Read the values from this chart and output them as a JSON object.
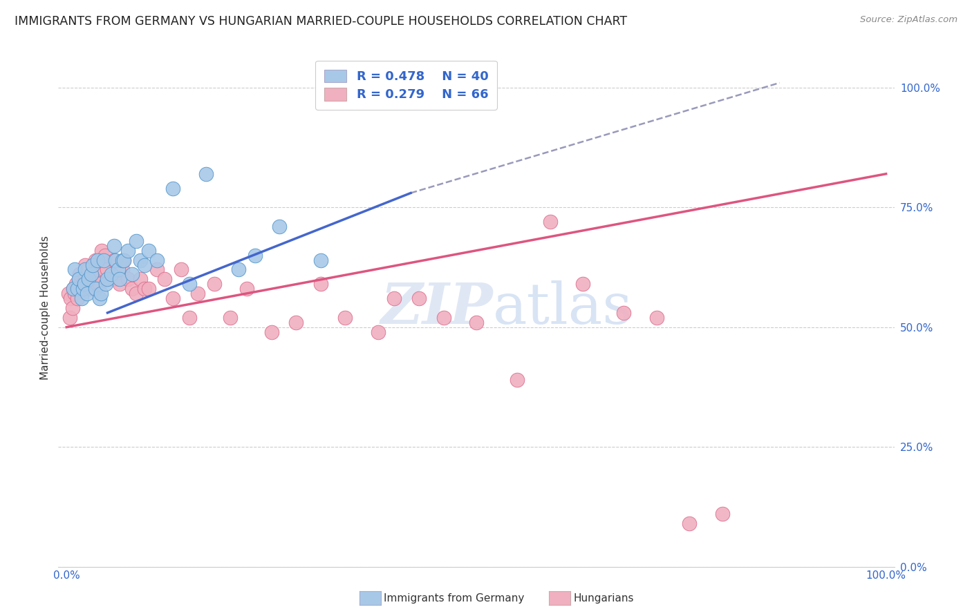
{
  "title": "IMMIGRANTS FROM GERMANY VS HUNGARIAN MARRIED-COUPLE HOUSEHOLDS CORRELATION CHART",
  "source": "Source: ZipAtlas.com",
  "ylabel": "Married-couple Households",
  "legend_label1": "Immigrants from Germany",
  "legend_label2": "Hungarians",
  "legend_R1": "R = 0.478",
  "legend_N1": "N = 40",
  "legend_R2": "R = 0.279",
  "legend_N2": "N = 66",
  "color_blue_fill": "#a8c8e8",
  "color_blue_edge": "#5599cc",
  "color_pink_fill": "#f0b0c0",
  "color_pink_edge": "#dd7090",
  "color_blue_line": "#4466cc",
  "color_pink_line": "#dd5580",
  "color_dashed": "#9999bb",
  "watermark_ZIP": "ZIP",
  "watermark_atlas": "atlas",
  "blue_scatter_x": [
    0.008,
    0.01,
    0.013,
    0.015,
    0.018,
    0.02,
    0.022,
    0.023,
    0.025,
    0.027,
    0.03,
    0.032,
    0.035,
    0.038,
    0.04,
    0.042,
    0.045,
    0.048,
    0.05,
    0.055,
    0.058,
    0.06,
    0.063,
    0.065,
    0.068,
    0.07,
    0.075,
    0.08,
    0.085,
    0.09,
    0.095,
    0.1,
    0.11,
    0.13,
    0.15,
    0.17,
    0.21,
    0.23,
    0.26,
    0.31
  ],
  "blue_scatter_y": [
    0.58,
    0.62,
    0.58,
    0.6,
    0.56,
    0.58,
    0.59,
    0.62,
    0.57,
    0.6,
    0.61,
    0.63,
    0.58,
    0.64,
    0.56,
    0.57,
    0.64,
    0.59,
    0.6,
    0.61,
    0.67,
    0.64,
    0.62,
    0.6,
    0.64,
    0.64,
    0.66,
    0.61,
    0.68,
    0.64,
    0.63,
    0.66,
    0.64,
    0.79,
    0.59,
    0.82,
    0.62,
    0.65,
    0.71,
    0.64
  ],
  "pink_scatter_x": [
    0.002,
    0.004,
    0.005,
    0.007,
    0.008,
    0.01,
    0.012,
    0.013,
    0.015,
    0.016,
    0.018,
    0.02,
    0.022,
    0.023,
    0.025,
    0.026,
    0.028,
    0.03,
    0.032,
    0.034,
    0.035,
    0.037,
    0.038,
    0.04,
    0.042,
    0.043,
    0.045,
    0.047,
    0.05,
    0.055,
    0.058,
    0.06,
    0.065,
    0.068,
    0.07,
    0.075,
    0.08,
    0.085,
    0.09,
    0.095,
    0.1,
    0.11,
    0.12,
    0.13,
    0.14,
    0.15,
    0.16,
    0.18,
    0.2,
    0.22,
    0.25,
    0.28,
    0.31,
    0.34,
    0.38,
    0.4,
    0.43,
    0.46,
    0.5,
    0.55,
    0.59,
    0.63,
    0.68,
    0.72,
    0.76,
    0.8
  ],
  "pink_scatter_y": [
    0.57,
    0.52,
    0.56,
    0.54,
    0.58,
    0.57,
    0.59,
    0.56,
    0.6,
    0.61,
    0.58,
    0.59,
    0.61,
    0.63,
    0.59,
    0.62,
    0.58,
    0.6,
    0.62,
    0.58,
    0.64,
    0.61,
    0.62,
    0.59,
    0.64,
    0.66,
    0.62,
    0.65,
    0.62,
    0.6,
    0.64,
    0.6,
    0.59,
    0.62,
    0.64,
    0.6,
    0.58,
    0.57,
    0.6,
    0.58,
    0.58,
    0.62,
    0.6,
    0.56,
    0.62,
    0.52,
    0.57,
    0.59,
    0.52,
    0.58,
    0.49,
    0.51,
    0.59,
    0.52,
    0.49,
    0.56,
    0.56,
    0.52,
    0.51,
    0.39,
    0.72,
    0.59,
    0.53,
    0.52,
    0.09,
    0.11
  ],
  "blue_line_x": [
    0.05,
    0.42
  ],
  "blue_line_y": [
    0.53,
    0.78
  ],
  "dashed_line_x": [
    0.42,
    0.87
  ],
  "dashed_line_y": [
    0.78,
    1.01
  ],
  "pink_line_x": [
    0.0,
    1.0
  ],
  "pink_line_y": [
    0.5,
    0.82
  ],
  "xlim": [
    -0.01,
    1.01
  ],
  "ylim": [
    0.0,
    1.08
  ],
  "ytick_positions": [
    0.0,
    0.25,
    0.5,
    0.75,
    1.0
  ],
  "ytick_labels": [
    "0.0%",
    "25.0%",
    "50.0%",
    "75.0%",
    "100.0%"
  ],
  "xtick_left_label": "0.0%",
  "xtick_right_label": "100.0%"
}
